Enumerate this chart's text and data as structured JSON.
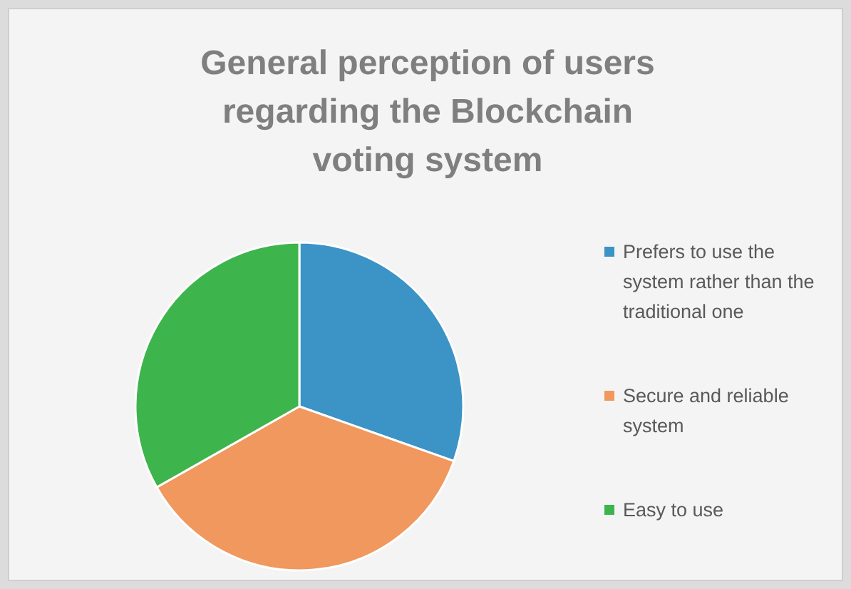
{
  "chart_data": {
    "type": "pie",
    "title": "General perception of users regarding the Blockchain voting system",
    "categories": [
      "Prefers to use the system rather than the traditional one",
      "Secure and reliable system",
      "Easy to use"
    ],
    "values": [
      30.4,
      36.4,
      33.2
    ],
    "colors": [
      "#3b93c6",
      "#f0985e",
      "#3db54c"
    ],
    "legend": "right"
  }
}
